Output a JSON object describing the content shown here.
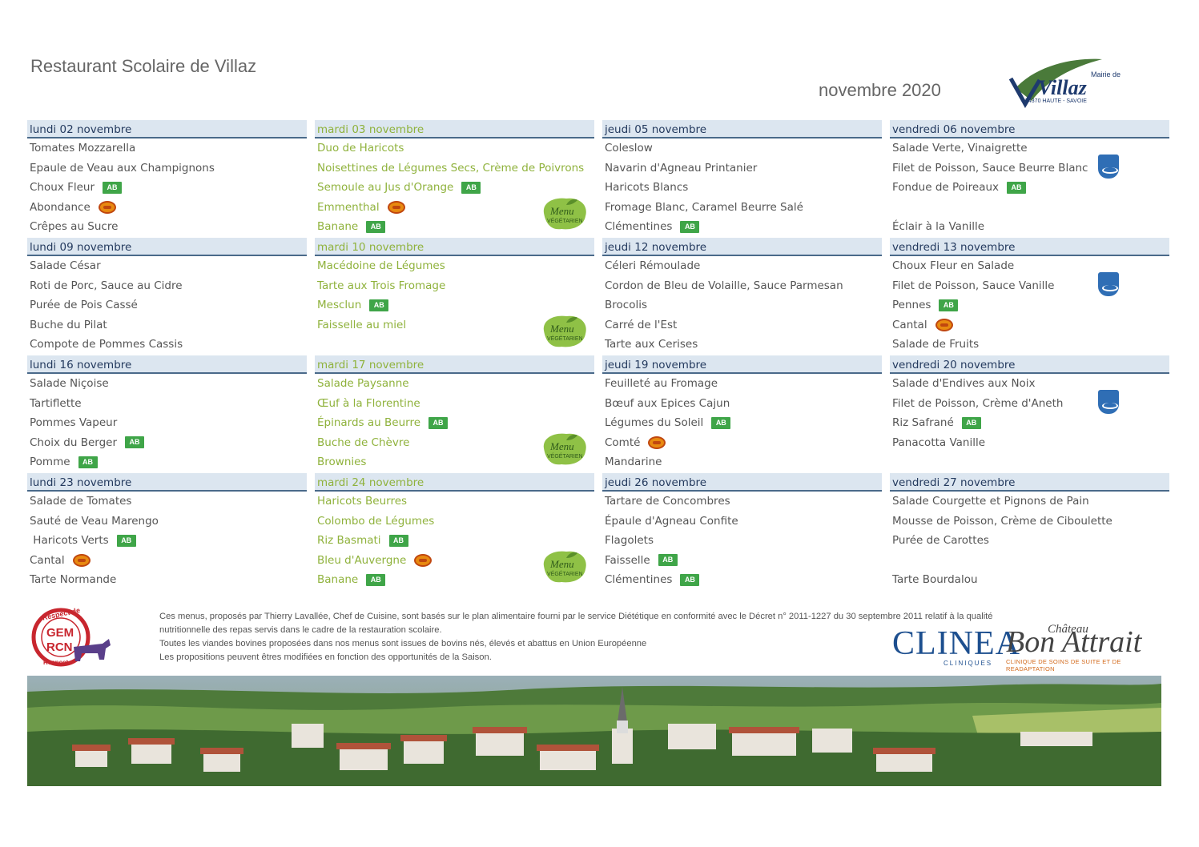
{
  "header": {
    "title": "Restaurant Scolaire de Villaz",
    "month": "novembre 2020",
    "mairie_logo": {
      "line1": "Mairie de",
      "name": "Villaz",
      "line2": "74370 HAUTE - SAVOIE"
    }
  },
  "weeks": [
    {
      "days": [
        {
          "header": "lundi 02 novembre",
          "green": false,
          "items": [
            {
              "text": "Tomates Mozzarella"
            },
            {
              "text": "Epaule de Veau aux Champignons"
            },
            {
              "text": "Choux Fleur",
              "badge": "AB"
            },
            {
              "text": "Abondance",
              "badge": "AOP"
            },
            {
              "text": "Crêpes au Sucre"
            }
          ]
        },
        {
          "header": "mardi 03 novembre",
          "green": true,
          "veg": true,
          "items": [
            {
              "text": "Duo de Haricots"
            },
            {
              "text": "Noisettines de Légumes Secs, Crème de Poivrons"
            },
            {
              "text": "Semoule au Jus d'Orange",
              "badge": "AB"
            },
            {
              "text": "Emmenthal",
              "badge": "AOP"
            },
            {
              "text": "Banane",
              "badge": "AB"
            }
          ]
        },
        {
          "header": "jeudi 05 novembre",
          "green": false,
          "items": [
            {
              "text": "Coleslow"
            },
            {
              "text": "Navarin d'Agneau Printanier"
            },
            {
              "text": "Haricots Blancs"
            },
            {
              "text": "Fromage Blanc, Caramel Beurre Salé"
            },
            {
              "text": "Clémentines",
              "badge": "AB"
            }
          ]
        },
        {
          "header": "vendredi 06 novembre",
          "green": false,
          "msc": true,
          "items": [
            {
              "text": "Salade Verte, Vinaigrette"
            },
            {
              "text": "Filet de Poisson, Sauce Beurre Blanc"
            },
            {
              "text": "Fondue de Poireaux",
              "badge": "AB"
            },
            {
              "text": ""
            },
            {
              "text": "Éclair à la Vanille"
            }
          ]
        }
      ]
    },
    {
      "days": [
        {
          "header": "lundi 09 novembre",
          "green": false,
          "items": [
            {
              "text": "Salade César"
            },
            {
              "text": "Roti de Porc, Sauce au Cidre"
            },
            {
              "text": "Purée de Pois Cassé"
            },
            {
              "text": "Buche du Pilat"
            },
            {
              "text": "Compote de Pommes Cassis"
            }
          ]
        },
        {
          "header": "mardi 10 novembre",
          "green": true,
          "veg": true,
          "items": [
            {
              "text": "Macédoine de Légumes"
            },
            {
              "text": "Tarte aux Trois Fromage"
            },
            {
              "text": "Mesclun",
              "badge": "AB"
            },
            {
              "text": "Faisselle au miel"
            },
            {
              "text": ""
            }
          ]
        },
        {
          "header": "jeudi 12 novembre",
          "green": false,
          "items": [
            {
              "text": "Céleri Rémoulade"
            },
            {
              "text": "Cordon de Bleu de Volaille, Sauce Parmesan"
            },
            {
              "text": "Brocolis"
            },
            {
              "text": "Carré de l'Est"
            },
            {
              "text": "Tarte aux Cerises"
            }
          ]
        },
        {
          "header": "vendredi 13 novembre",
          "green": false,
          "msc": true,
          "items": [
            {
              "text": "Choux Fleur en Salade"
            },
            {
              "text": "Filet de Poisson, Sauce Vanille"
            },
            {
              "text": "Pennes",
              "badge": "AB"
            },
            {
              "text": "Cantal",
              "badge": "AOP"
            },
            {
              "text": "Salade de Fruits"
            }
          ]
        }
      ]
    },
    {
      "days": [
        {
          "header": "lundi 16 novembre",
          "green": false,
          "items": [
            {
              "text": "Salade Niçoise"
            },
            {
              "text": "Tartiflette"
            },
            {
              "text": "Pommes Vapeur"
            },
            {
              "text": "Choix du Berger",
              "badge": "AB"
            },
            {
              "text": "Pomme",
              "badge": "AB"
            }
          ]
        },
        {
          "header": "mardi 17 novembre",
          "green": true,
          "veg": true,
          "items": [
            {
              "text": "Salade Paysanne"
            },
            {
              "text": "Œuf à la Florentine"
            },
            {
              "text": "Épinards au Beurre",
              "badge": "AB"
            },
            {
              "text": "Buche de Chèvre"
            },
            {
              "text": "Brownies"
            }
          ]
        },
        {
          "header": "jeudi 19 novembre",
          "green": false,
          "items": [
            {
              "text": "Feuilleté au Fromage"
            },
            {
              "text": "Bœuf aux Epices Cajun"
            },
            {
              "text": "Légumes du Soleil",
              "badge": "AB"
            },
            {
              "text": "Comté",
              "badge": "AOP"
            },
            {
              "text": "Mandarine"
            }
          ]
        },
        {
          "header": "vendredi 20 novembre",
          "green": false,
          "msc": true,
          "items": [
            {
              "text": "Salade d'Endives aux Noix"
            },
            {
              "text": "Filet de Poisson, Crème d'Aneth"
            },
            {
              "text": "Riz Safrané",
              "badge": "AB"
            },
            {
              "text": "Panacotta Vanille"
            },
            {
              "text": ""
            }
          ]
        }
      ]
    },
    {
      "days": [
        {
          "header": "lundi 23 novembre",
          "green": false,
          "items": [
            {
              "text": "Salade de Tomates"
            },
            {
              "text": "Sauté de Veau Marengo"
            },
            {
              "text": " Haricots Verts",
              "badge": "AB"
            },
            {
              "text": "Cantal",
              "badge": "AOP"
            },
            {
              "text": "Tarte Normande"
            }
          ]
        },
        {
          "header": "mardi 24 novembre",
          "green": true,
          "veg": true,
          "items": [
            {
              "text": "Haricots Beurres"
            },
            {
              "text": "Colombo de Légumes"
            },
            {
              "text": "Riz Basmati",
              "badge": "AB"
            },
            {
              "text": "Bleu d'Auvergne",
              "badge": "AOP"
            },
            {
              "text": "Banane",
              "badge": "AB"
            }
          ]
        },
        {
          "header": "jeudi 26 novembre",
          "green": false,
          "items": [
            {
              "text": "Tartare de Concombres"
            },
            {
              "text": "Épaule d'Agneau Confite"
            },
            {
              "text": "Flagolets"
            },
            {
              "text": "Faisselle",
              "badge": "AB"
            },
            {
              "text": "Clémentines",
              "badge": "AB"
            }
          ]
        },
        {
          "header": "vendredi 27 novembre",
          "green": false,
          "items": [
            {
              "text": "Salade Courgette et Pignons de Pain"
            },
            {
              "text": "Mousse de Poisson, Crème de Ciboulette"
            },
            {
              "text": "Purée de Carottes"
            },
            {
              "text": ""
            },
            {
              "text": "Tarte Bourdalou"
            }
          ]
        }
      ]
    }
  ],
  "badges": {
    "ab_label": "AB",
    "veg_line1": "Menu",
    "veg_line2": "VÉGÉTARIEN"
  },
  "footer": {
    "lines": [
      "Ces menus, proposés par Thierry Lavallée, Chef de Cuisine, sont basés sur le plan alimentaire fourni par le service Diététique en conformité avec le Décret n° 2011-1227 du 30 septembre 2011 relatif à la qualité",
      "nutritionnelle des repas servis dans le cadre de la restauration scolaire.",
      "Toutes les viandes bovines proposées dans nos menus sont issues de bovins nés, élevés et abattus en Union Européenne",
      "Les propositions peuvent êtres modifiées en fonction des opportunités de la Saison."
    ],
    "gemrcn": {
      "top": "Respect de",
      "line1": "GEM",
      "line2": "RCN",
      "bottom": "Respect"
    },
    "clinea": {
      "name": "CLINEA",
      "sub": "CLINIQUES"
    },
    "bon_attrait": {
      "chateau": "Château",
      "name": "Bon Attrait",
      "sub": "CLINIQUE DE SOINS DE SUITE ET DE READAPTATION"
    }
  },
  "colors": {
    "header_bg": "#dce6f0",
    "header_border": "#4a6a8a",
    "green": "#8fb23c",
    "ab_green": "#3fa548"
  }
}
